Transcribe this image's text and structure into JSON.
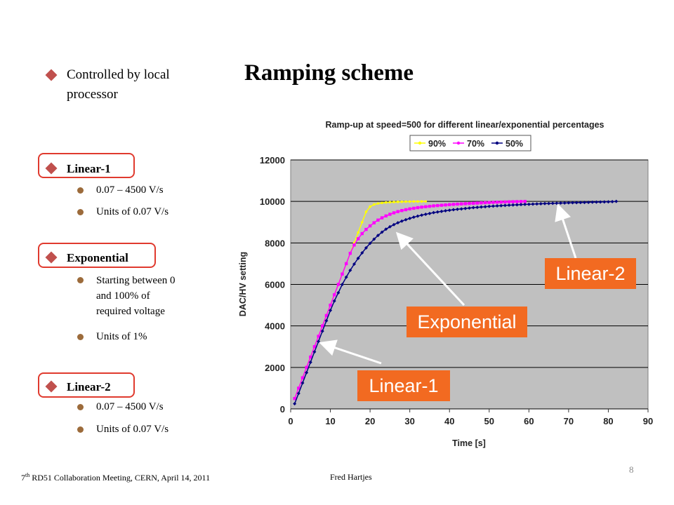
{
  "slide": {
    "title": "Ramping scheme",
    "intro": {
      "line1": "Controlled by local",
      "line2": "processor"
    },
    "linear1": {
      "heading": "Linear-1",
      "items": [
        "0.07 – 4500 V/s",
        "Units of 0.07 V/s"
      ]
    },
    "exponential": {
      "heading": "Exponential",
      "item1_lines": [
        "Starting between 0",
        "and 100% of",
        "required voltage"
      ],
      "item2": "Units of 1%"
    },
    "linear2": {
      "heading": "Linear-2",
      "items": [
        "0.07 – 4500 V/s",
        "Units of 0.07 V/s"
      ]
    },
    "callouts": {
      "linear1": "Linear-1",
      "exponential": "Exponential",
      "linear2": "Linear-2"
    },
    "footer": {
      "meeting_pre": "7",
      "meeting_sup": "th",
      "meeting_rest": " RD51 Collaboration Meeting, CERN, April  14, 2011",
      "author": "Fred Hartjes",
      "page": "8"
    }
  },
  "colors": {
    "accent_red": "#e03a2e",
    "diamond": "#c0504d",
    "callout_bg": "#f26a21",
    "plot_bg": "#c0c0c0",
    "series_90": "#ffff00",
    "series_70": "#ff00ff",
    "series_50": "#000080"
  },
  "chart_data": {
    "type": "line",
    "title": "Ramp-up at speed=500 for different linear/exponential percentages",
    "xlabel": "Time [s]",
    "ylabel": "DAC/HV setting",
    "xlim": [
      0,
      90
    ],
    "ylim": [
      0,
      12000
    ],
    "xticks": [
      0,
      10,
      20,
      30,
      40,
      50,
      60,
      70,
      80,
      90
    ],
    "yticks": [
      0,
      2000,
      4000,
      6000,
      8000,
      10000,
      12000
    ],
    "grid": "horizontal",
    "legend": "top",
    "series": [
      {
        "name": "90%",
        "color": "#ffff00",
        "x": [
          1,
          2,
          3,
          4,
          5,
          6,
          7,
          8,
          9,
          10,
          11,
          12,
          13,
          14,
          15,
          16,
          17,
          18,
          19,
          20,
          21,
          22,
          23,
          24,
          25,
          26,
          27,
          28,
          29,
          30,
          31,
          32,
          33,
          34
        ],
        "y": [
          500,
          1000,
          1500,
          2000,
          2500,
          3000,
          3500,
          4000,
          4500,
          5000,
          5500,
          6000,
          6500,
          7000,
          7500,
          8000,
          8500,
          9000,
          9500,
          9750,
          9850,
          9900,
          9930,
          9950,
          9960,
          9970,
          9978,
          9984,
          9988,
          9991,
          9994,
          9996,
          9998,
          10000
        ]
      },
      {
        "name": "70%",
        "color": "#ff00ff",
        "x": [
          1,
          2,
          3,
          4,
          5,
          6,
          7,
          8,
          9,
          10,
          11,
          12,
          13,
          14,
          15,
          16,
          17,
          18,
          19,
          20,
          21,
          22,
          23,
          24,
          25,
          26,
          27,
          28,
          29,
          30,
          31,
          32,
          33,
          34,
          35,
          36,
          37,
          38,
          39,
          40,
          41,
          42,
          43,
          44,
          45,
          46,
          47,
          48,
          49,
          50,
          51,
          52,
          53,
          54,
          55,
          56,
          57,
          58,
          59
        ],
        "y": [
          500,
          1000,
          1500,
          2000,
          2500,
          3000,
          3500,
          4000,
          4500,
          5000,
          5500,
          6000,
          6500,
          7000,
          7500,
          7900,
          8200,
          8450,
          8650,
          8820,
          8970,
          9100,
          9210,
          9300,
          9380,
          9450,
          9510,
          9560,
          9600,
          9640,
          9670,
          9700,
          9725,
          9745,
          9765,
          9785,
          9800,
          9815,
          9830,
          9845,
          9858,
          9870,
          9880,
          9890,
          9900,
          9910,
          9920,
          9930,
          9940,
          9948,
          9955,
          9962,
          9968,
          9974,
          9980,
          9985,
          9990,
          9995,
          10000
        ]
      },
      {
        "name": "50%",
        "color": "#000080",
        "x": [
          1,
          2,
          3,
          4,
          5,
          6,
          7,
          8,
          9,
          10,
          11,
          12,
          13,
          14,
          15,
          16,
          17,
          18,
          19,
          20,
          21,
          22,
          23,
          24,
          25,
          26,
          27,
          28,
          29,
          30,
          31,
          32,
          33,
          34,
          35,
          36,
          37,
          38,
          39,
          40,
          41,
          42,
          43,
          44,
          45,
          46,
          47,
          48,
          49,
          50,
          51,
          52,
          53,
          54,
          55,
          56,
          57,
          58,
          59,
          60,
          61,
          62,
          63,
          64,
          65,
          66,
          67,
          68,
          69,
          70,
          71,
          72,
          73,
          74,
          75,
          76,
          77,
          78,
          79,
          80,
          81,
          82
        ],
        "y": [
          250,
          750,
          1250,
          1750,
          2250,
          2750,
          3250,
          3750,
          4250,
          4750,
          5200,
          5600,
          6000,
          6350,
          6680,
          6980,
          7260,
          7520,
          7760,
          7980,
          8180,
          8360,
          8520,
          8660,
          8780,
          8880,
          8970,
          9050,
          9120,
          9180,
          9240,
          9290,
          9340,
          9380,
          9420,
          9460,
          9490,
          9520,
          9550,
          9575,
          9600,
          9620,
          9640,
          9660,
          9680,
          9700,
          9715,
          9730,
          9745,
          9760,
          9772,
          9784,
          9796,
          9808,
          9818,
          9828,
          9838,
          9848,
          9856,
          9864,
          9872,
          9880,
          9887,
          9894,
          9901,
          9908,
          9914,
          9920,
          9926,
          9932,
          9937,
          9942,
          9947,
          9952,
          9957,
          9962,
          9967,
          9972,
          9977,
          9982,
          9988,
          10000
        ]
      }
    ]
  }
}
